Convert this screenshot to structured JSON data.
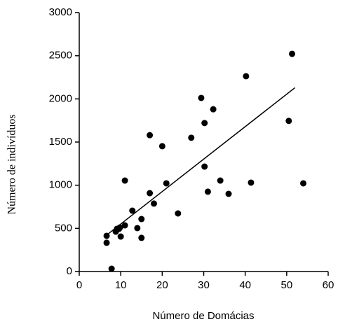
{
  "chart_data": {
    "type": "scatter",
    "xlabel": "Número de Domácias",
    "ylabel": "Número de indivíduos",
    "x": [
      6.6,
      6.6,
      7.8,
      8.8,
      9.1,
      9.6,
      10,
      9.8,
      11,
      11,
      12.8,
      14,
      15,
      15,
      17,
      17,
      18,
      20,
      21,
      23.8,
      27,
      29.4,
      30.2,
      30.2,
      31,
      32.3,
      34,
      36,
      40.2,
      41.4,
      50.5,
      51.3,
      54
    ],
    "values": [
      414,
      333,
      32,
      462,
      495,
      495,
      405,
      510,
      535,
      1054,
      705,
      503,
      608,
      390,
      908,
      1580,
      787,
      1452,
      1022,
      673,
      1550,
      2011,
      1720,
      1216,
      925,
      1880,
      1054,
      900,
      2263,
      1030,
      1745,
      2522,
      1022
    ],
    "color": "#000000",
    "trend_line": {
      "x": [
        6,
        52
      ],
      "y": [
        400,
        2130
      ]
    },
    "xlim": [
      0,
      60
    ],
    "xticks": [
      0,
      10,
      20,
      30,
      40,
      50,
      60
    ],
    "ylim": [
      0,
      3000
    ],
    "yticks": [
      0,
      500,
      1000,
      1500,
      2000,
      2500,
      3000
    ]
  }
}
